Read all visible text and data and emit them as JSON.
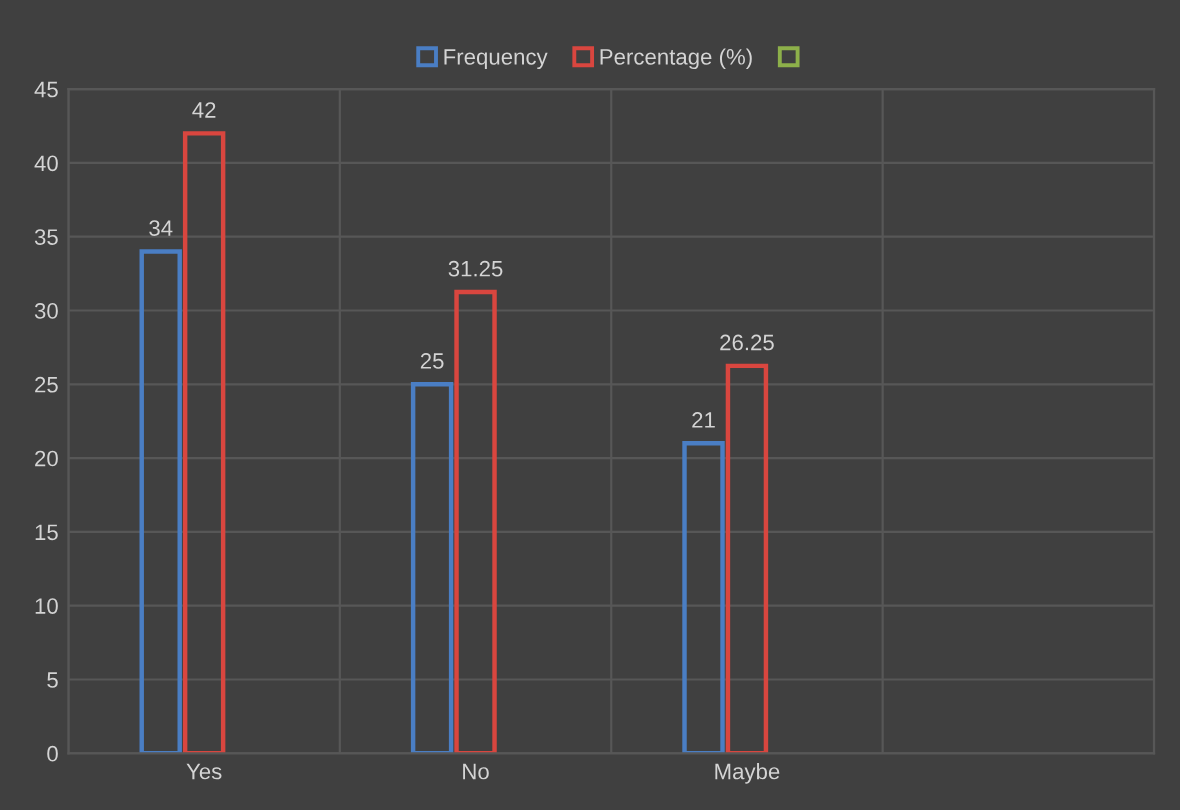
{
  "chart_data": {
    "type": "bar",
    "categories": [
      "Yes",
      "No",
      "Maybe",
      null
    ],
    "series": [
      {
        "name": "Frequency",
        "color": "#4a7ec4",
        "values": [
          34,
          25,
          21,
          null
        ]
      },
      {
        "name": "Percentage (%)",
        "color": "#d9463f",
        "values": [
          42,
          31.25,
          26.25,
          null
        ]
      },
      {
        "color": "#8db04a",
        "values": [
          null,
          null,
          null,
          null
        ]
      }
    ],
    "ylim": [
      0,
      45
    ],
    "yticks": [
      0,
      5,
      10,
      15,
      20,
      25,
      30,
      35,
      40,
      45
    ],
    "grid": true,
    "legend": "top",
    "data_labels": true
  }
}
